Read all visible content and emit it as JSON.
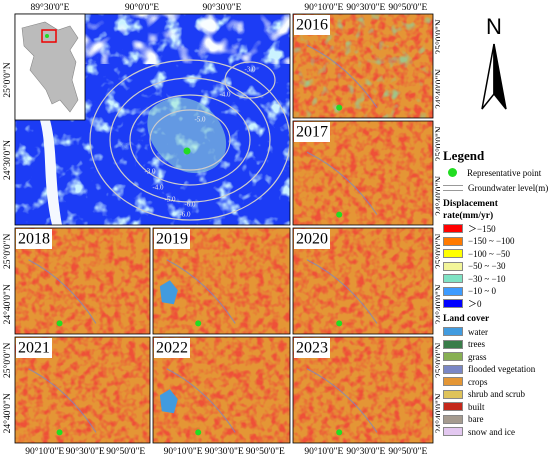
{
  "main_map": {
    "x_labels": [
      "89°30'0\"E",
      "90°0'0\"E",
      "90°30'0\"E"
    ],
    "y_labels": [
      "25°0'0\"N",
      "24°30'0\"N"
    ],
    "contour_labels": [
      "-3.0",
      "-4.0",
      "-5.0",
      "-6.0",
      "-5.0",
      "-4.0",
      "-3.0",
      "-6.0"
    ]
  },
  "panels": [
    {
      "year": "2016"
    },
    {
      "year": "2017"
    },
    {
      "year": "2018"
    },
    {
      "year": "2019"
    },
    {
      "year": "2020"
    },
    {
      "year": "2021"
    },
    {
      "year": "2022"
    },
    {
      "year": "2023"
    }
  ],
  "small_x_labels": [
    "90°10'0\"E",
    "90°30'0\"E",
    "90°50'0\"E"
  ],
  "small_y_labels": [
    "25°0'0\"N",
    "24°40'0\"N"
  ],
  "north": "N",
  "legend": {
    "title": "Legend",
    "point": "Representative point",
    "groundwater": "Groundwater level(m)",
    "displacement_title": "Displacement rate(mm/yr)",
    "displacement": [
      {
        "label": "＞−150",
        "color": "#ff0000"
      },
      {
        "label": "−150 ~ −100",
        "color": "#ff7a00"
      },
      {
        "label": "−100 ~ −50",
        "color": "#ffff00"
      },
      {
        "label": "−50 ~ −30",
        "color": "#f2f59a"
      },
      {
        "label": "−30 ~ −10",
        "color": "#7fe3c4"
      },
      {
        "label": "−10 ~ 0",
        "color": "#3d9bff"
      },
      {
        "label": "＞0",
        "color": "#0000ff"
      }
    ],
    "land_cover_title": "Land cover",
    "land_cover": [
      {
        "label": "water",
        "color": "#419bdf"
      },
      {
        "label": "trees",
        "color": "#397d49"
      },
      {
        "label": "grass",
        "color": "#88b053"
      },
      {
        "label": "flooded vegetation",
        "color": "#7a87c6"
      },
      {
        "label": "crops",
        "color": "#e49635"
      },
      {
        "label": "shrub and scrub",
        "color": "#dfc35a"
      },
      {
        "label": "built",
        "color": "#c4281b"
      },
      {
        "label": "bare",
        "color": "#a59b8f"
      },
      {
        "label": "snow and ice",
        "color": "#e3c8f0"
      }
    ]
  }
}
